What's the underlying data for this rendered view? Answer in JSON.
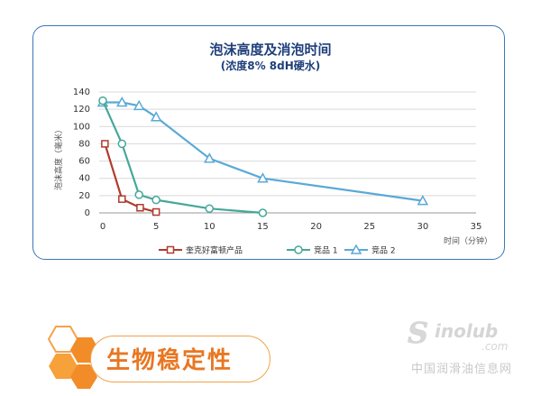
{
  "chart_data": {
    "type": "line",
    "title": "泡沫高度及消泡时间",
    "subtitle": "(浓度8%  8dH硬水)",
    "xlabel": "时间（分钟）",
    "ylabel": "泡沫高度（毫米）",
    "xlim": [
      0,
      35
    ],
    "ylim": [
      0,
      140
    ],
    "x_ticks": [
      0,
      5,
      10,
      15,
      20,
      25,
      30,
      35
    ],
    "y_ticks": [
      0,
      20,
      40,
      60,
      80,
      100,
      120,
      140
    ],
    "grid": "horizontal",
    "legend_position": "bottom",
    "series": [
      {
        "name": "奎克好富顿产品",
        "color": "#b03a2e",
        "marker": "square",
        "x": [
          0.2,
          1.8,
          3.5,
          5
        ],
        "y": [
          80,
          16,
          6,
          1
        ]
      },
      {
        "name": "竞品 1",
        "color": "#45a89a",
        "marker": "circle",
        "x": [
          0,
          1.8,
          3.4,
          5,
          10,
          15
        ],
        "y": [
          130,
          80,
          21,
          15,
          5,
          0
        ]
      },
      {
        "name": "竞品 2",
        "color": "#5aa9d6",
        "marker": "triangle",
        "x": [
          0,
          1.8,
          3.4,
          5,
          10,
          15,
          30
        ],
        "y": [
          128,
          128,
          124,
          111,
          63,
          40,
          14
        ]
      }
    ]
  },
  "badge": {
    "label": "生物稳定性",
    "hex_color": "#f28c28"
  },
  "watermark": {
    "logo_text": "Sinolub",
    "logo_sub": ".com",
    "site_name": "中国润滑油信息网"
  }
}
